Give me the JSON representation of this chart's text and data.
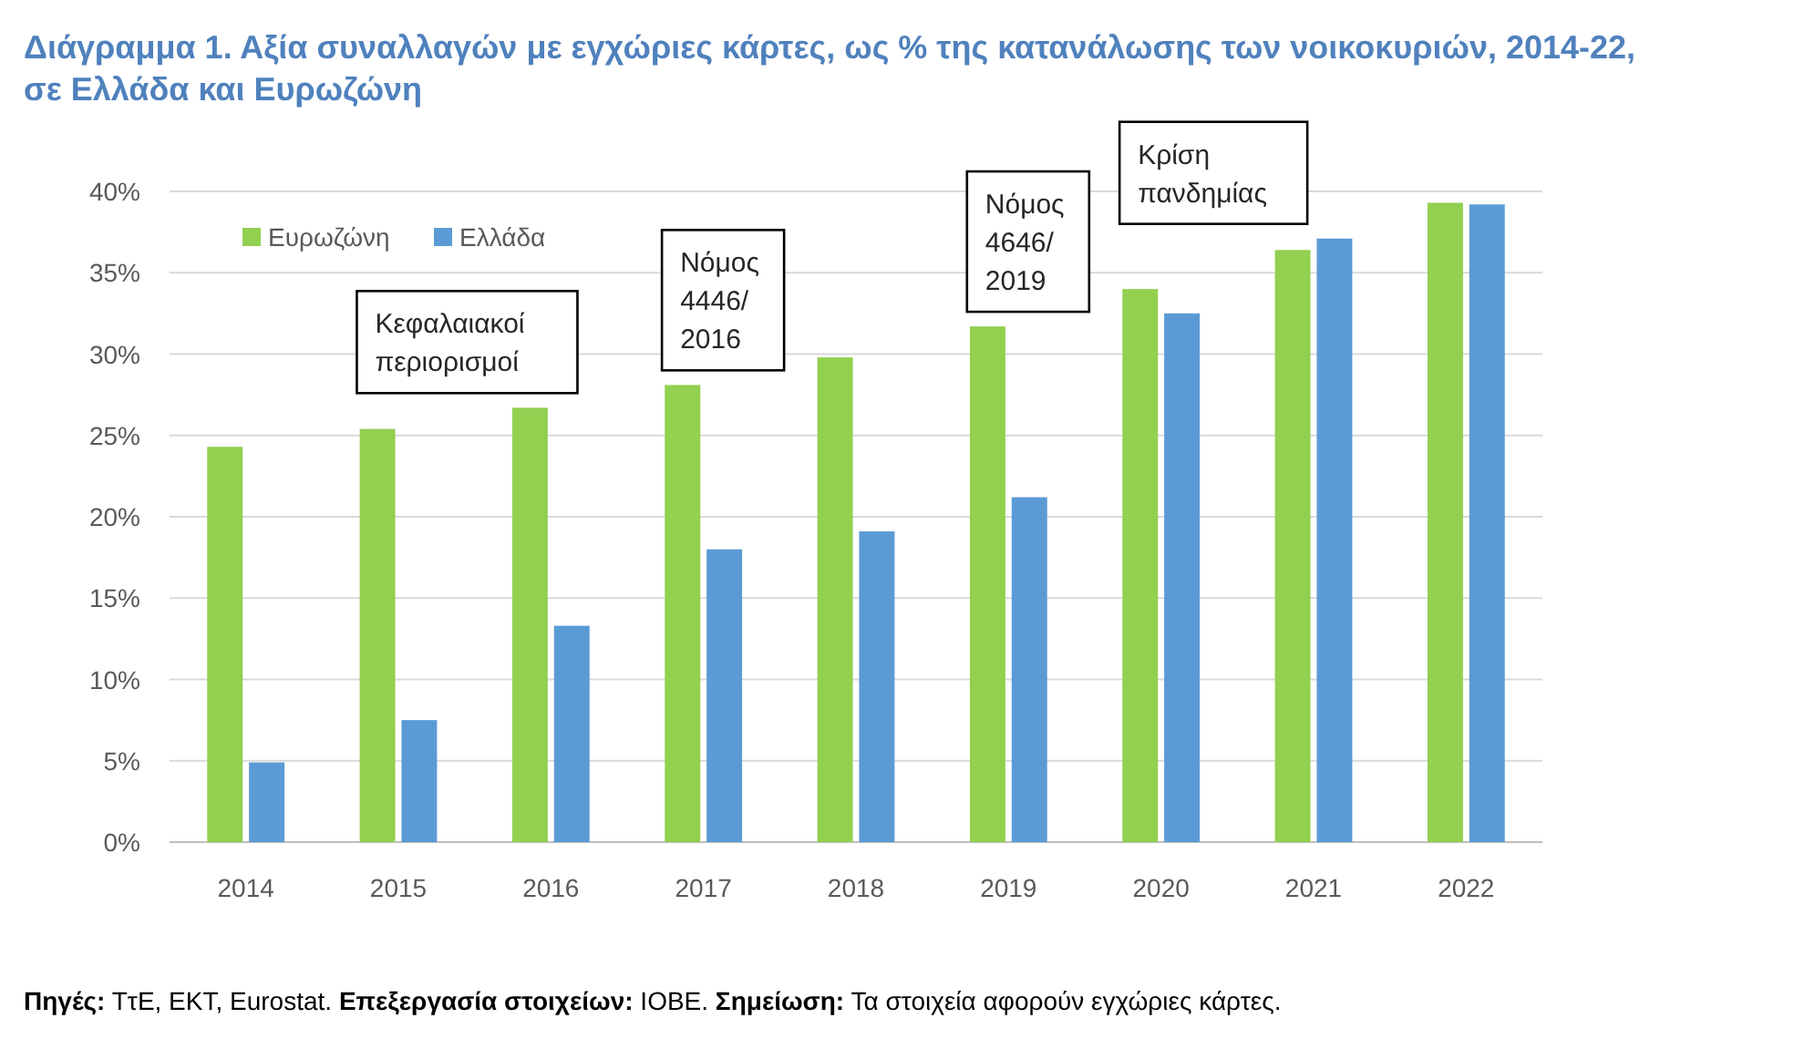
{
  "chart_data": {
    "type": "bar",
    "title": "Διάγραμμα 1. Αξία συναλλαγών με εγχώριες κάρτες, ως % της κατανάλωσης των νοικοκυριών, 2014-22, σε Ελλάδα και Ευρωζώνη",
    "categories": [
      "2014",
      "2015",
      "2016",
      "2017",
      "2018",
      "2019",
      "2020",
      "2021",
      "2022"
    ],
    "series": [
      {
        "name": "Ευρωζώνη",
        "color": "#92d050",
        "values": [
          24.3,
          25.4,
          26.7,
          28.1,
          29.8,
          31.7,
          34.0,
          36.4,
          39.3
        ]
      },
      {
        "name": "Ελλάδα",
        "color": "#5b9bd5",
        "values": [
          4.9,
          7.5,
          13.3,
          18.0,
          19.1,
          21.2,
          32.5,
          37.1,
          39.2
        ]
      }
    ],
    "ylim": [
      0,
      40
    ],
    "yticks": [
      {
        "value": 0,
        "label": "0%"
      },
      {
        "value": 5,
        "label": "5%"
      },
      {
        "value": 10,
        "label": "10%"
      },
      {
        "value": 15,
        "label": "15%"
      },
      {
        "value": 20,
        "label": "20%"
      },
      {
        "value": 25,
        "label": "25%"
      },
      {
        "value": 30,
        "label": "30%"
      },
      {
        "value": 35,
        "label": "35%"
      },
      {
        "value": 40,
        "label": "40%"
      }
    ],
    "grid": "y",
    "legend": "top left",
    "annotations": [
      "Κεφαλαιακοί\nπεριορισμοί",
      "Νόμος\n4446/\n2016",
      "Νόμος\n4646/\n2019",
      "Κρίση\nπανδημίας",
      "Πηγές: ΤτΕ, ΕΚΤ, Eurostat. Επεξεργασία στοιχείων: ΙΟΒΕ. Σημείωση: Τα στοιχεία αφορούν εγχώριες κάρτες."
    ]
  }
}
